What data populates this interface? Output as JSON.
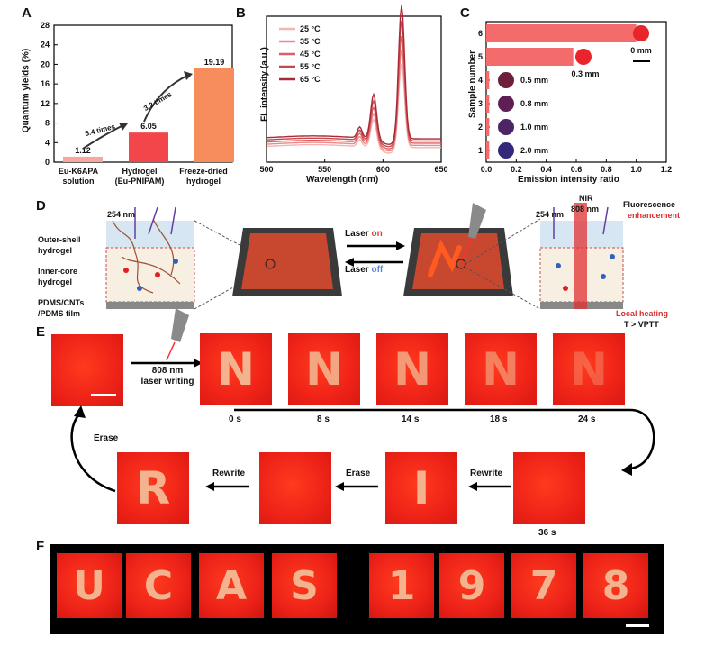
{
  "panels": {
    "A": "A",
    "B": "B",
    "C": "C",
    "D": "D",
    "E": "E",
    "F": "F"
  },
  "panelA": {
    "chart_data": {
      "type": "bar",
      "categories": [
        "Eu-K6APA solution",
        "Hydrogel (Eu-PNIPAM)",
        "Freeze-dried hydrogel"
      ],
      "values": [
        1.12,
        6.05,
        19.19
      ],
      "value_labels": [
        "1.12",
        "6.05",
        "19.19"
      ],
      "colors": [
        "#f7a6a0",
        "#f2464a",
        "#f78c5c"
      ],
      "ylabel": "Quantum yields (%)",
      "ylim": [
        0,
        28
      ],
      "yticks": [
        "0",
        "4",
        "8",
        "12",
        "16",
        "20",
        "24",
        "28"
      ],
      "annotations": [
        "5.4 times",
        "3.2 times"
      ]
    },
    "xlabels": [
      [
        "Eu-K6APA",
        "solution"
      ],
      [
        "Hydrogel",
        "(Eu-PNIPAM)"
      ],
      [
        "Freeze-dried",
        "hydrogel"
      ]
    ]
  },
  "panelB": {
    "chart_data": {
      "type": "line",
      "xlabel": "Wavelength (nm)",
      "ylabel": "FL intensity (a.u.)",
      "xlim": [
        500,
        650
      ],
      "xticks": [
        "500",
        "550",
        "600",
        "650"
      ],
      "series": [
        {
          "name": "25 °C",
          "color": "#f4b4b4",
          "peak616": 0.58
        },
        {
          "name": "35 °C",
          "color": "#ec8a8a",
          "peak616": 0.66
        },
        {
          "name": "45 °C",
          "color": "#dd6060",
          "peak616": 0.74
        },
        {
          "name": "55 °C",
          "color": "#c84848",
          "peak616": 0.83
        },
        {
          "name": "65 °C",
          "color": "#a82a3a",
          "peak616": 0.92
        }
      ]
    },
    "legend": [
      "25 °C",
      "35 °C",
      "45 °C",
      "55 °C",
      "65 °C"
    ]
  },
  "panelC": {
    "chart_data": {
      "type": "bar",
      "orientation": "horizontal",
      "xlabel": "Emission intensity ratio",
      "ylabel": "Sample number",
      "xlim": [
        0,
        1.2
      ],
      "xticks": [
        "0.0",
        "0.2",
        "0.4",
        "0.6",
        "0.8",
        "1.0",
        "1.2"
      ],
      "yticks": [
        "1",
        "2",
        "3",
        "4",
        "5",
        "6"
      ],
      "samples": [
        6,
        5,
        4,
        3,
        2,
        1
      ],
      "values": [
        1.0,
        0.58,
        0.02,
        0.02,
        0.02,
        0.02
      ],
      "sizes": [
        "0 mm",
        "0.3 mm",
        "0.5 mm",
        "0.8 mm",
        "1.0 mm",
        "2.0 mm"
      ],
      "dot_colors": [
        "#e8252a",
        "#e8252a",
        "#6d1f3b",
        "#5e2054",
        "#4d2466",
        "#33277a"
      ]
    }
  },
  "panelD": {
    "nm254_left": "254 nm",
    "outer": [
      "Outer-shell",
      "hydrogel"
    ],
    "inner": [
      "Inner-core",
      "hydrogel"
    ],
    "pdms": [
      "PDMS/CNTs",
      "/PDMS film"
    ],
    "laser_on_prefix": "Laser ",
    "laser_on": "on",
    "laser_off_prefix": "Laser ",
    "laser_off": "off",
    "nir": "NIR",
    "nm808": "808 nm",
    "nm254_right": "254 nm",
    "fluorescence": "Fluorescence",
    "enhancement": "enhancement",
    "local_heating": "Local heating",
    "vptt": "T > VPTT"
  },
  "panelE": {
    "laser_label": [
      "808 nm",
      "laser writing"
    ],
    "times": [
      "0 s",
      "8 s",
      "14 s",
      "18 s",
      "24 s",
      "36 s"
    ],
    "erase1": "Erase",
    "erase2": "Erase",
    "rewrite1": "Rewrite",
    "rewrite2": "Rewrite",
    "letters_top": [
      "N",
      "N",
      "N",
      "N",
      "N"
    ],
    "letters_bottom": [
      "R",
      "",
      "I",
      ""
    ]
  },
  "panelF": {
    "letters": [
      "U",
      "C",
      "A",
      "S",
      "1",
      "9",
      "7",
      "8"
    ]
  }
}
